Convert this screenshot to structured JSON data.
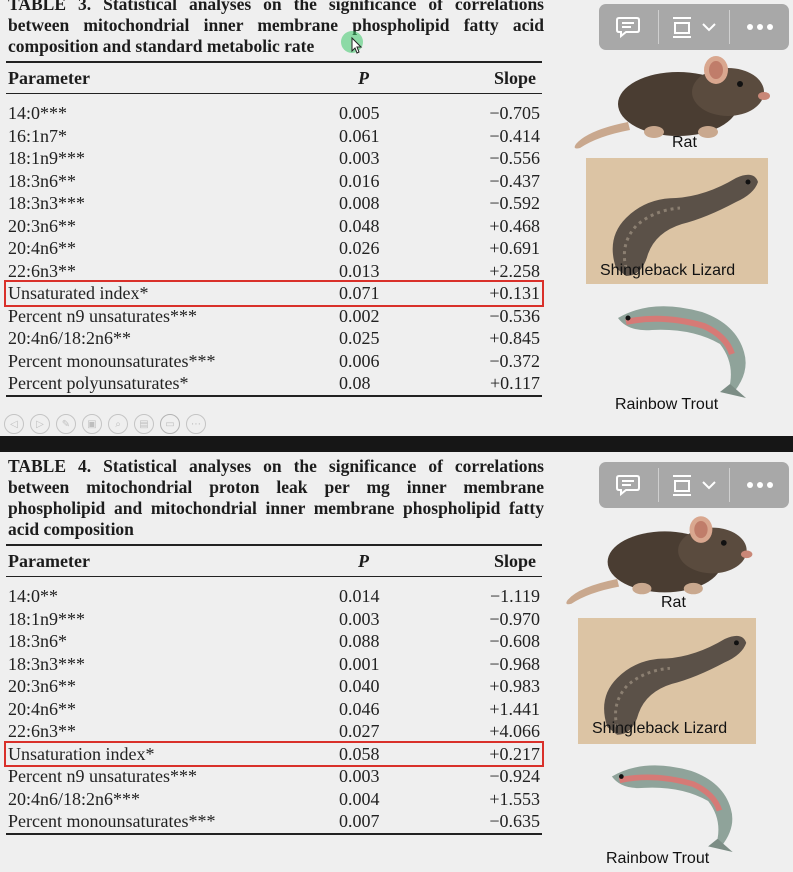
{
  "slides": [
    {
      "caption_label": "TABLE 3.",
      "caption_text": "Statistical analyses on the significance of correlations between mitochondrial inner membrane phospholipid fatty acid composition and standard metabolic rate",
      "headers": {
        "parameter": "Parameter",
        "p": "P",
        "slope": "Slope"
      },
      "rows": [
        {
          "parameter": "14:0***",
          "p": "0.005",
          "slope": "−0.705"
        },
        {
          "parameter": "16:1n7*",
          "p": "0.061",
          "slope": "−0.414"
        },
        {
          "parameter": "18:1n9***",
          "p": "0.003",
          "slope": "−0.556"
        },
        {
          "parameter": "18:3n6**",
          "p": "0.016",
          "slope": "−0.437"
        },
        {
          "parameter": "18:3n3***",
          "p": "0.008",
          "slope": "−0.592"
        },
        {
          "parameter": "20:3n6**",
          "p": "0.048",
          "slope": "+0.468"
        },
        {
          "parameter": "20:4n6**",
          "p": "0.026",
          "slope": "+0.691"
        },
        {
          "parameter": "22:6n3**",
          "p": "0.013",
          "slope": "+2.258"
        },
        {
          "parameter": "Unsaturated index*",
          "p": "0.071",
          "slope": "+0.131"
        },
        {
          "parameter": "Percent n9 unsaturates***",
          "p": "0.002",
          "slope": "−0.536"
        },
        {
          "parameter": "20:4n6/18:2n6**",
          "p": "0.025",
          "slope": "+0.845"
        },
        {
          "parameter": "Percent monounsaturates***",
          "p": "0.006",
          "slope": "−0.372"
        },
        {
          "parameter": "Percent polyunsaturates*",
          "p": "0.08",
          "slope": "+0.117"
        }
      ],
      "animals": {
        "rat": "Rat",
        "lizard": "Shingleback Lizard",
        "trout": "Rainbow Trout"
      }
    },
    {
      "caption_label": "TABLE 4.",
      "caption_text": "Statistical analyses on the significance of correlations between mitochondrial proton leak per mg inner membrane phospholipid and mitochondrial inner membrane phospholipid fatty acid composition",
      "headers": {
        "parameter": "Parameter",
        "p": "P",
        "slope": "Slope"
      },
      "rows": [
        {
          "parameter": "14:0**",
          "p": "0.014",
          "slope": "−1.119"
        },
        {
          "parameter": "18:1n9***",
          "p": "0.003",
          "slope": "−0.970"
        },
        {
          "parameter": "18:3n6*",
          "p": "0.088",
          "slope": "−0.608"
        },
        {
          "parameter": "18:3n3***",
          "p": "0.001",
          "slope": "−0.968"
        },
        {
          "parameter": "20:3n6**",
          "p": "0.040",
          "slope": "+0.983"
        },
        {
          "parameter": "20:4n6**",
          "p": "0.046",
          "slope": "+1.441"
        },
        {
          "parameter": "22:6n3**",
          "p": "0.027",
          "slope": "+4.066"
        },
        {
          "parameter": "Unsaturation index*",
          "p": "0.058",
          "slope": "+0.217"
        },
        {
          "parameter": "Percent n9 unsaturates***",
          "p": "0.003",
          "slope": "−0.924"
        },
        {
          "parameter": "20:4n6/18:2n6***",
          "p": "0.004",
          "slope": "+1.553"
        },
        {
          "parameter": "Percent monounsaturates***",
          "p": "0.007",
          "slope": "−0.635"
        }
      ],
      "animals": {
        "rat": "Rat",
        "lizard": "Shingleback Lizard",
        "trout": "Rainbow Trout"
      }
    }
  ],
  "toolbar_icons": [
    "comment-icon",
    "layout-icon",
    "chevron-down-icon",
    "more-icon"
  ],
  "player_icons": [
    "previous-icon",
    "play-icon",
    "pen-icon",
    "save-icon",
    "zoom-icon",
    "subtitles-icon",
    "camera-icon",
    "more-icon"
  ],
  "colors": {
    "highlight": "#d9302a",
    "toolbar": "#a8a8a8",
    "slide_bg": "#efefef"
  }
}
